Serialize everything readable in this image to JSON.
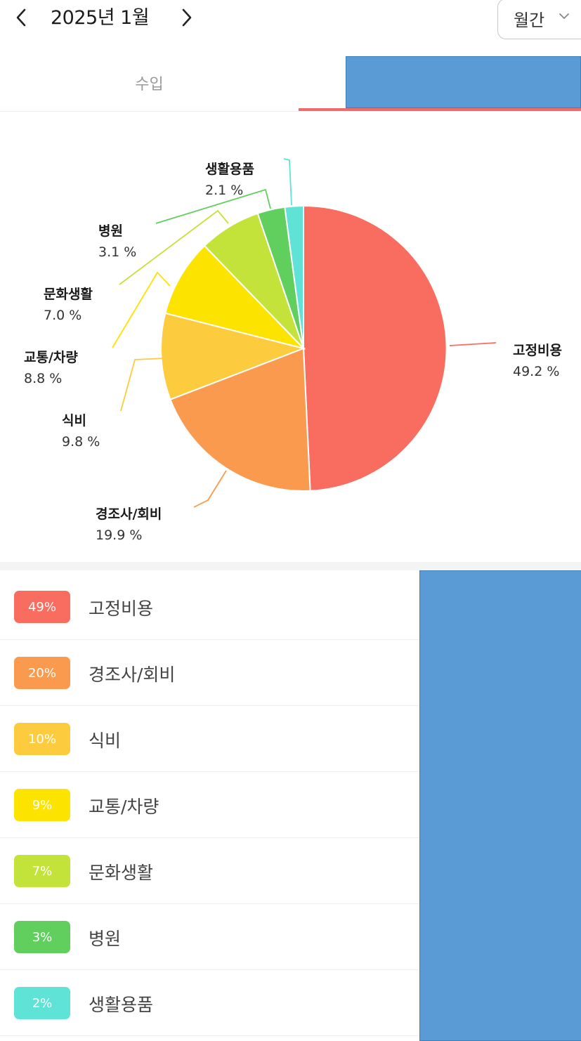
{
  "header": {
    "title": "2025년 1월",
    "period": "월간",
    "icons": {
      "prev": "chevron-left-icon",
      "next": "chevron-right-icon",
      "dropdown": "chevron-down-icon"
    }
  },
  "tabs": [
    {
      "label": "수입",
      "selected": false
    },
    {
      "label": "",
      "selected": true
    }
  ],
  "colors": {
    "accent": "#ef6b6b",
    "blocked_panel": "#5b9bd5"
  },
  "chart_data": {
    "type": "pie",
    "slices": [
      {
        "label": "고정비용",
        "value": 49.2,
        "pct_text": "49.2 %",
        "color": "#f96d60"
      },
      {
        "label": "경조사/회비",
        "value": 19.9,
        "pct_text": "19.9 %",
        "color": "#fa9a4e"
      },
      {
        "label": "식비",
        "value": 9.8,
        "pct_text": "9.8 %",
        "color": "#fdcb3e"
      },
      {
        "label": "교통/차량",
        "value": 8.8,
        "pct_text": "8.8 %",
        "color": "#fde300"
      },
      {
        "label": "문화생활",
        "value": 7.0,
        "pct_text": "7.0 %",
        "color": "#c3e33a"
      },
      {
        "label": "병원",
        "value": 3.1,
        "pct_text": "3.1 %",
        "color": "#61cf5e"
      },
      {
        "label": "생활용품",
        "value": 2.1,
        "pct_text": "2.1 %",
        "color": "#5fe3d7"
      }
    ]
  },
  "categories": [
    {
      "badge": "49%",
      "name": "고정비용",
      "color": "#f96d60"
    },
    {
      "badge": "20%",
      "name": "경조사/회비",
      "color": "#fa9a4e"
    },
    {
      "badge": "10%",
      "name": "식비",
      "color": "#fdcb3e"
    },
    {
      "badge": "9%",
      "name": "교통/차량",
      "color": "#fde300"
    },
    {
      "badge": "7%",
      "name": "문화생활",
      "color": "#c3e33a"
    },
    {
      "badge": "3%",
      "name": "병원",
      "color": "#61cf5e"
    },
    {
      "badge": "2%",
      "name": "생활용품",
      "color": "#5fe3d7"
    }
  ]
}
